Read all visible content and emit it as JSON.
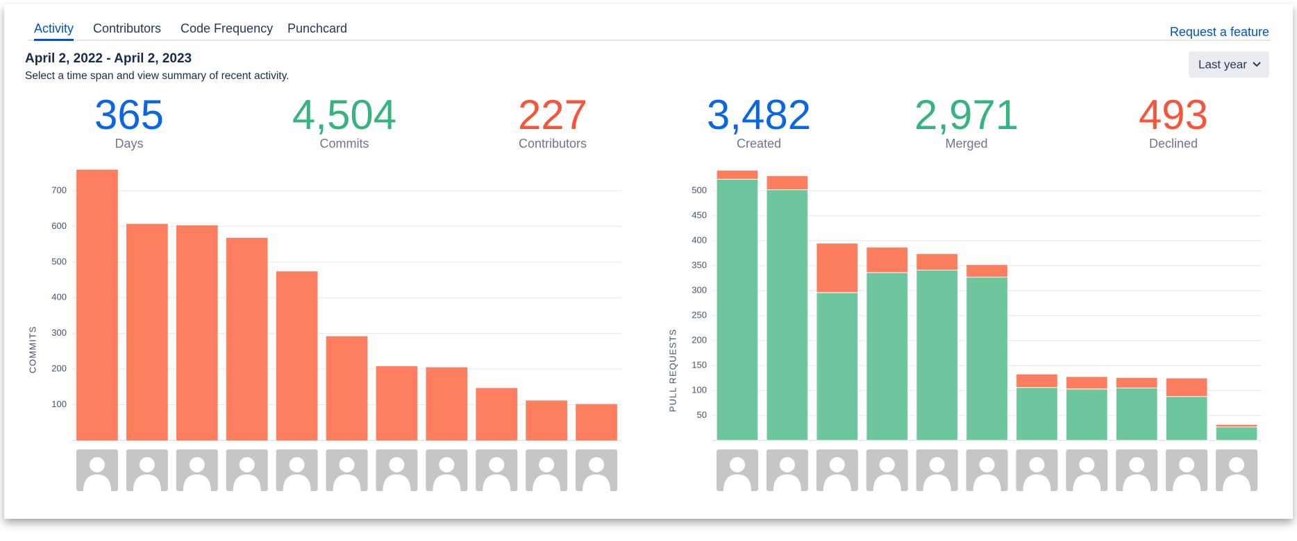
{
  "tabs": [
    "Activity",
    "Contributors",
    "Code Frequency",
    "Punchcard"
  ],
  "request_link": "Request a feature",
  "header": {
    "title": "April 2, 2022 - April 2, 2023",
    "subtitle": "Select a time span and view summary of recent activity."
  },
  "range_select": "Last year",
  "stats": [
    {
      "value": "365",
      "label": "Days"
    },
    {
      "value": "4,504",
      "label": "Commits"
    },
    {
      "value": "227",
      "label": "Contributors"
    },
    {
      "value": "3,482",
      "label": "Created"
    },
    {
      "value": "2,971",
      "label": "Merged"
    },
    {
      "value": "493",
      "label": "Declined"
    }
  ],
  "chart_data": [
    {
      "type": "bar",
      "ylabel": "COMMITS",
      "categories": [
        null,
        null,
        null,
        null,
        null,
        null,
        null,
        null,
        null,
        null,
        null
      ],
      "values": [
        759,
        607,
        603,
        568,
        474,
        292,
        208,
        205,
        147,
        112,
        102
      ],
      "color": "#fe7f5f",
      "ylim": [
        0,
        770
      ],
      "yticks": [
        100,
        200,
        300,
        400,
        500,
        600,
        700
      ],
      "grid": true
    },
    {
      "type": "stacked_bar",
      "ylabel": "PULL REQUESTS",
      "categories": [
        null,
        null,
        null,
        null,
        null,
        null,
        null,
        null,
        null,
        null,
        null
      ],
      "series": [
        {
          "color": "#6dc69d",
          "values": [
            523,
            502,
            296,
            336,
            341,
            327,
            106,
            103,
            105,
            88,
            27
          ]
        },
        {
          "color": "#fd7e5e",
          "values": [
            18,
            28,
            99,
            51,
            33,
            25,
            27,
            25,
            21,
            37,
            5
          ]
        }
      ],
      "ylim": [
        0,
        550
      ],
      "yticks": [
        50,
        100,
        150,
        200,
        250,
        300,
        350,
        400,
        450,
        500
      ],
      "grid": true
    }
  ]
}
